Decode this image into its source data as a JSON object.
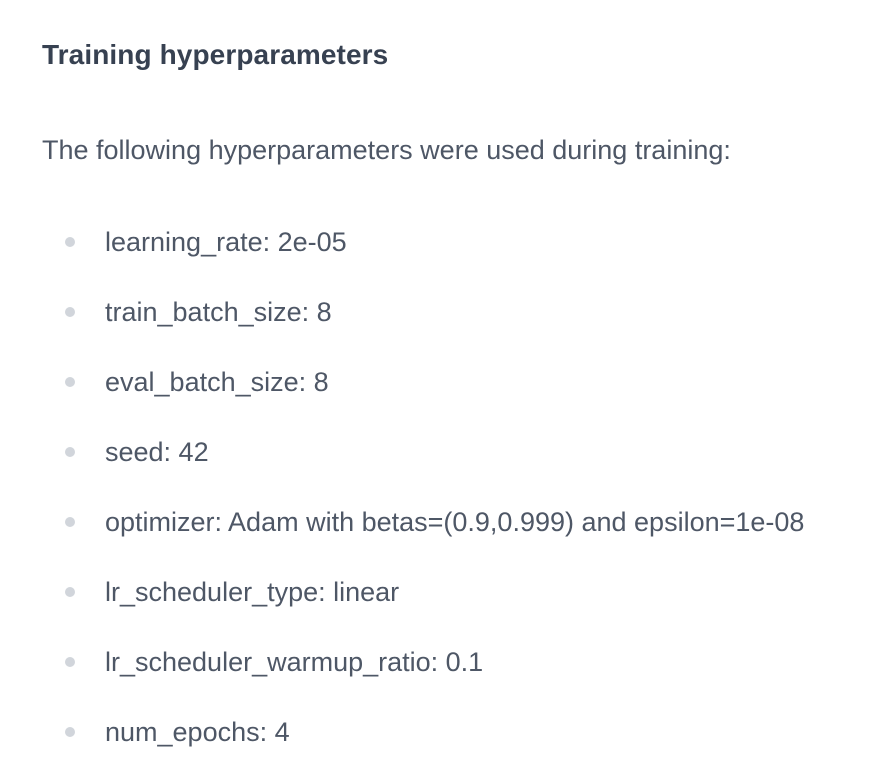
{
  "section": {
    "heading": "Training hyperparameters",
    "intro": "The following hyperparameters were used during training:",
    "items": [
      "learning_rate: 2e-05",
      "train_batch_size: 8",
      "eval_batch_size: 8",
      "seed: 42",
      "optimizer: Adam with betas=(0.9,0.999) and epsilon=1e-08",
      "lr_scheduler_type: linear",
      "lr_scheduler_warmup_ratio: 0.1",
      "num_epochs: 4"
    ]
  },
  "colors": {
    "heading": "#374151",
    "body": "#4e5766",
    "bullet": "#d1d5db",
    "background": "#ffffff"
  }
}
